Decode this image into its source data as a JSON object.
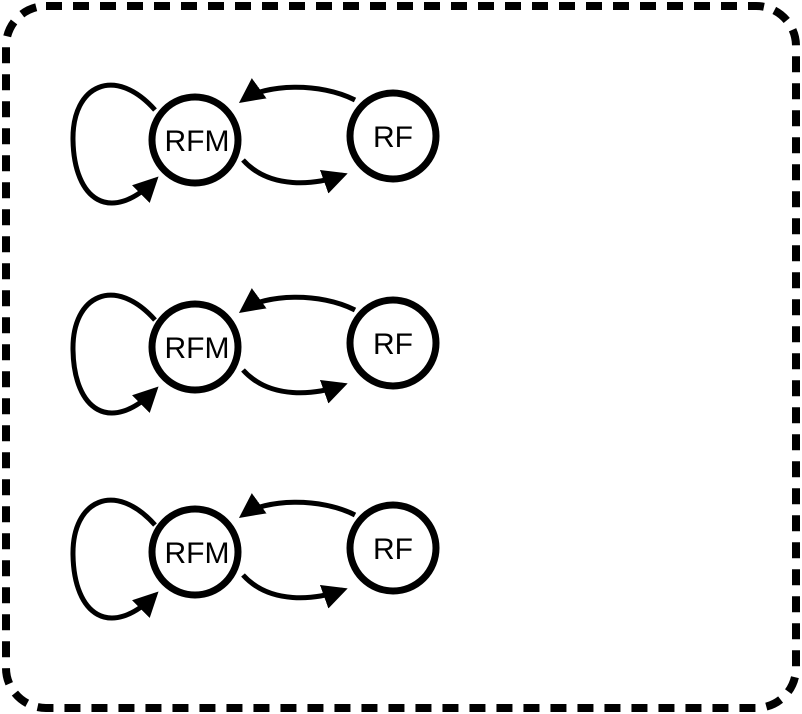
{
  "diagram": {
    "border_color": "#000000",
    "background": "#ffffff",
    "rows": [
      {
        "left_node": "RFM",
        "right_node": "RF"
      },
      {
        "left_node": "RFM",
        "right_node": "RF"
      },
      {
        "left_node": "RFM",
        "right_node": "RF"
      }
    ]
  }
}
